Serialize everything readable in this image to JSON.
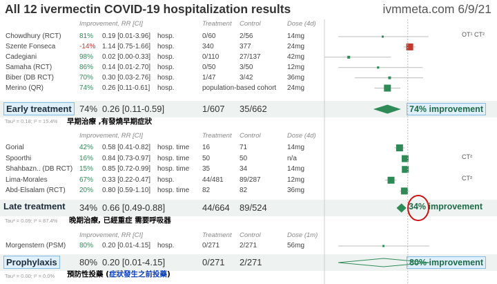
{
  "title": "All 12 ivermectin COVID-19 hospitalization results",
  "brand": "ivmmeta.com 6/9/21",
  "colors": {
    "accent": "#2e8b57",
    "negative": "#c0392b",
    "band": "#eef3f1",
    "box": "#dff0fb",
    "circle": "#cc1111"
  },
  "chart_data": {
    "type": "forest",
    "scale": "log",
    "xlim": [
      0.004,
      256
    ],
    "sections": [
      {
        "headers": {
          "impr": "Improvement, RR [CI]",
          "treat": "Treatment",
          "ctrl": "Control",
          "dose": "Dose (4d)"
        },
        "studies": [
          {
            "name": "Chowdhury (RCT)",
            "impr": "81%",
            "rr": 0.19,
            "lo": 0.01,
            "hi": 3.96,
            "ci": "0.19 [0.01-3.96]",
            "outcome": "hosp.",
            "treat": "0/60",
            "ctrl": "2/56",
            "dose": "14mg",
            "note": "OT¹ CT²"
          },
          {
            "name": "Szente Fonseca",
            "impr": "-14%",
            "rr": 1.14,
            "lo": 0.75,
            "hi": 1.66,
            "ci": "1.14 [0.75-1.66]",
            "outcome": "hosp.",
            "treat": "340",
            "ctrl": "377",
            "dose": "24mg",
            "note": ""
          },
          {
            "name": "Cadegiani",
            "impr": "98%",
            "rr": 0.02,
            "lo": 0.0,
            "hi": 0.33,
            "ci": "0.02 [0.00-0.33]",
            "outcome": "hosp.",
            "treat": "0/110",
            "ctrl": "27/137",
            "dose": "42mg",
            "note": ""
          },
          {
            "name": "Samaha (RCT)",
            "impr": "86%",
            "rr": 0.14,
            "lo": 0.01,
            "hi": 2.7,
            "ci": "0.14 [0.01-2.70]",
            "outcome": "hosp.",
            "treat": "0/50",
            "ctrl": "3/50",
            "dose": "12mg",
            "note": ""
          },
          {
            "name": "Biber (DB RCT)",
            "impr": "70%",
            "rr": 0.3,
            "lo": 0.03,
            "hi": 2.76,
            "ci": "0.30 [0.03-2.76]",
            "outcome": "hosp.",
            "treat": "1/47",
            "ctrl": "3/42",
            "dose": "36mg",
            "note": ""
          },
          {
            "name": "Merino (QR)",
            "impr": "74%",
            "rr": 0.26,
            "lo": 0.11,
            "hi": 0.61,
            "ci": "0.26 [0.11-0.61]",
            "outcome": "hosp.",
            "treat": "population-based cohort",
            "ctrl": "",
            "dose": "24mg",
            "note": ""
          }
        ],
        "summary": {
          "label": "Early treatment",
          "impr": "74%",
          "ci": "0.26 [0.11-0.59]",
          "rr": 0.26,
          "lo": 0.11,
          "hi": 0.59,
          "treat": "1/607",
          "ctrl": "35/662",
          "improvement": "74% improvement"
        },
        "tau": "Tau² = 0.18; I² = 15.4%",
        "cn": "早期治療 ,有發燒早期症狀"
      },
      {
        "headers": {
          "impr": "Improvement, RR [CI]",
          "treat": "Treatment",
          "ctrl": "Control",
          "dose": "Dose (4d)"
        },
        "studies": [
          {
            "name": "Gorial",
            "impr": "42%",
            "rr": 0.58,
            "lo": 0.41,
            "hi": 0.82,
            "ci": "0.58 [0.41-0.82]",
            "outcome": "hosp. time",
            "treat": "16",
            "ctrl": "71",
            "dose": "14mg",
            "note": ""
          },
          {
            "name": "Spoorthi",
            "impr": "16%",
            "rr": 0.84,
            "lo": 0.73,
            "hi": 0.97,
            "ci": "0.84 [0.73-0.97]",
            "outcome": "hosp. time",
            "treat": "50",
            "ctrl": "50",
            "dose": "n/a",
            "note": "CT²"
          },
          {
            "name": "Shahbazn.. (DB RCT)",
            "impr": "15%",
            "rr": 0.85,
            "lo": 0.72,
            "hi": 0.99,
            "ci": "0.85 [0.72-0.99]",
            "outcome": "hosp. time",
            "treat": "35",
            "ctrl": "34",
            "dose": "14mg",
            "note": ""
          },
          {
            "name": "Lima-Morales",
            "impr": "67%",
            "rr": 0.33,
            "lo": 0.22,
            "hi": 0.47,
            "ci": "0.33 [0.22-0.47]",
            "outcome": "hosp.",
            "treat": "44/481",
            "ctrl": "89/287",
            "dose": "12mg",
            "note": "CT²"
          },
          {
            "name": "Abd-Elsalam (RCT)",
            "impr": "20%",
            "rr": 0.8,
            "lo": 0.59,
            "hi": 1.1,
            "ci": "0.80 [0.59-1.10]",
            "outcome": "hosp. time",
            "treat": "82",
            "ctrl": "82",
            "dose": "36mg",
            "note": ""
          }
        ],
        "summary": {
          "label": "Late treatment",
          "impr": "34%",
          "ci": "0.66 [0.49-0.88]",
          "rr": 0.66,
          "lo": 0.49,
          "hi": 0.88,
          "treat": "44/664",
          "ctrl": "89/524",
          "improvement": "34% improvement"
        },
        "tau": "Tau² = 0.09; I² = 87.4%",
        "cn": "晚期治療, 已經重症 需要呼吸器"
      },
      {
        "headers": {
          "impr": "Improvement, RR [CI]",
          "treat": "Treatment",
          "ctrl": "Control",
          "dose": "Dose (1m)"
        },
        "studies": [
          {
            "name": "Morgenstern (PSM)",
            "impr": "80%",
            "rr": 0.2,
            "lo": 0.01,
            "hi": 4.15,
            "ci": "0.20 [0.01-4.15]",
            "outcome": "hosp.",
            "treat": "0/271",
            "ctrl": "2/271",
            "dose": "56mg",
            "note": ""
          }
        ],
        "summary": {
          "label": "Prophylaxis",
          "impr": "80%",
          "ci": "0.20 [0.01-4.15]",
          "rr": 0.2,
          "lo": 0.01,
          "hi": 4.15,
          "treat": "0/271",
          "ctrl": "2/271",
          "improvement": "80% improvement"
        },
        "tau": "Tau² = 0.00; I² = 0.0%",
        "cn": "預防性投藥 (",
        "cn_blue": "症狀發生之前投藥",
        "cn_end": ")"
      }
    ]
  }
}
